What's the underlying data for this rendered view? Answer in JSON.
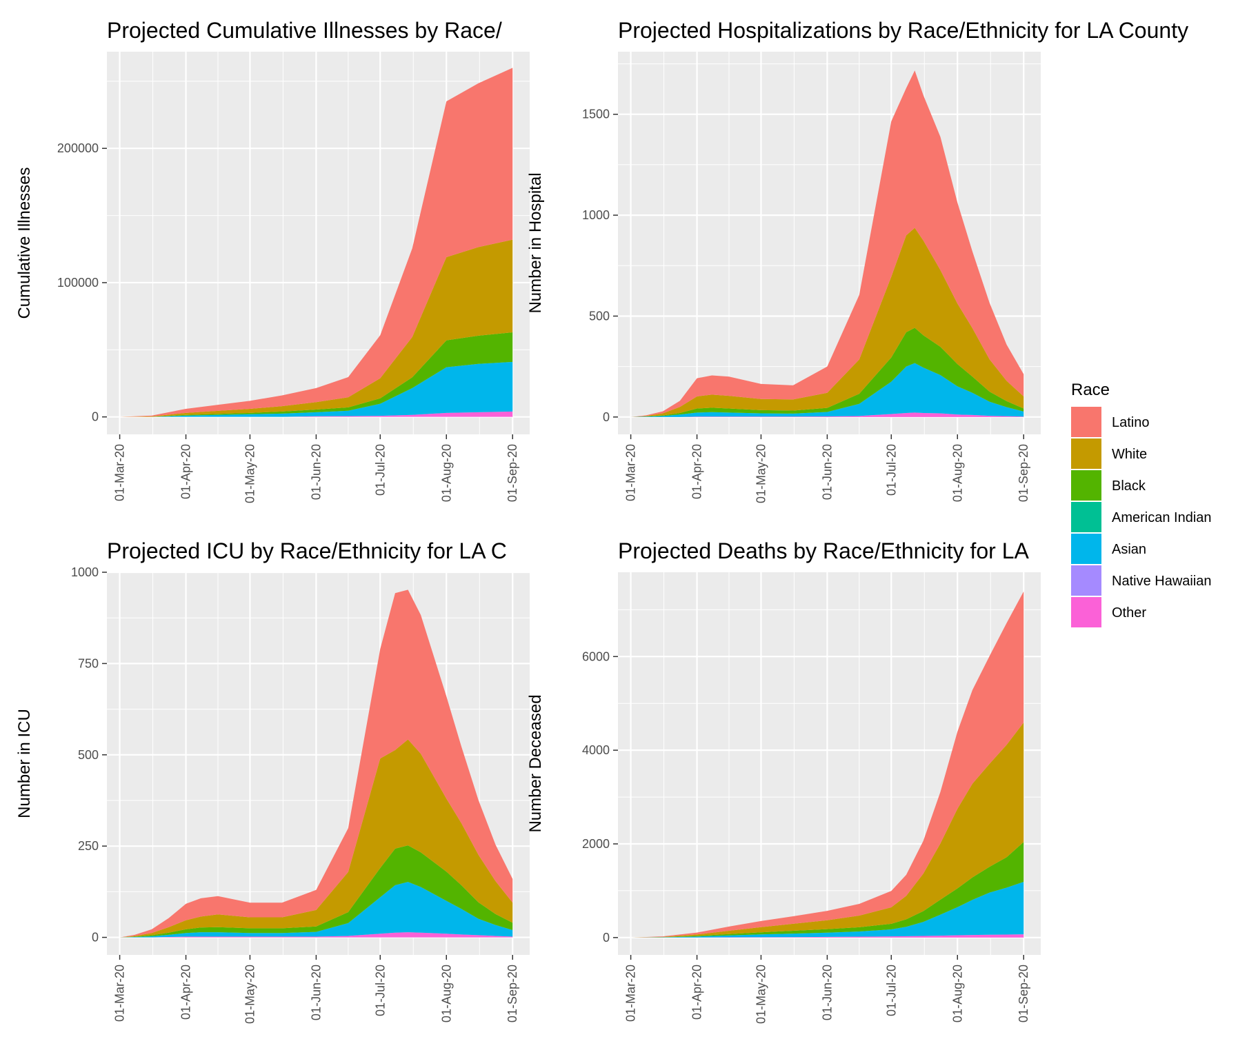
{
  "legend": {
    "title": "Race",
    "placement": "right",
    "items": [
      {
        "label": "Latino",
        "color": "#F8766D"
      },
      {
        "label": "White",
        "color": "#C49A00"
      },
      {
        "label": "Black",
        "color": "#53B400"
      },
      {
        "label": "American Indian",
        "color": "#00C094"
      },
      {
        "label": "Asian",
        "color": "#00B6EB"
      },
      {
        "label": "Native Hawaiian",
        "color": "#A58AFF"
      },
      {
        "label": "Other",
        "color": "#FB61D7"
      }
    ]
  },
  "chart_data": [
    {
      "type": "area",
      "stacked": true,
      "title": "Projected Cumulative Illnesses by Race/",
      "xlabel": "",
      "ylabel": "Cumulative Illnesses",
      "ylim": [
        -13000,
        272000
      ],
      "yticks": [
        0,
        100000,
        200000
      ],
      "ytick_labels": [
        "0",
        "100000",
        "200000"
      ],
      "xticks": [
        "2020-03-01",
        "2020-04-01",
        "2020-05-01",
        "2020-06-01",
        "2020-07-01",
        "2020-08-01",
        "2020-09-01"
      ],
      "xtick_labels": [
        "01-Mar-20",
        "01-Apr-20",
        "01-May-20",
        "01-Jun-20",
        "01-Jul-20",
        "01-Aug-20",
        "01-Sep-20"
      ],
      "grid": true,
      "x": [
        "2020-03-01",
        "2020-03-16",
        "2020-04-01",
        "2020-04-16",
        "2020-05-01",
        "2020-05-16",
        "2020-06-01",
        "2020-06-16",
        "2020-07-01",
        "2020-07-16",
        "2020-08-01",
        "2020-08-16",
        "2020-09-01"
      ],
      "series": [
        {
          "name": "Other",
          "values": [
            0,
            0,
            0,
            0,
            0,
            0,
            500,
            600,
            800,
            1500,
            3000,
            3500,
            4000
          ]
        },
        {
          "name": "Native Hawaiian",
          "values": [
            0,
            0,
            0,
            0,
            0,
            0,
            0,
            0,
            0,
            0,
            0,
            0,
            0
          ]
        },
        {
          "name": "Asian",
          "values": [
            0,
            0,
            1000,
            1500,
            2000,
            2500,
            3000,
            4000,
            9000,
            20000,
            34000,
            36000,
            37000
          ]
        },
        {
          "name": "American Indian",
          "values": [
            0,
            0,
            0,
            0,
            0,
            0,
            0,
            0,
            0,
            0,
            0,
            0,
            0
          ]
        },
        {
          "name": "Black",
          "values": [
            0,
            0,
            500,
            800,
            1000,
            1500,
            2000,
            2500,
            4000,
            8000,
            20000,
            21000,
            22000
          ]
        },
        {
          "name": "White",
          "values": [
            0,
            400,
            1500,
            2200,
            3000,
            4000,
            5500,
            7500,
            15000,
            30000,
            62000,
            66000,
            69000
          ]
        },
        {
          "name": "Latino",
          "values": [
            0,
            600,
            3000,
            4500,
            6000,
            8000,
            10500,
            15000,
            32000,
            66000,
            116000,
            122000,
            128000
          ]
        }
      ]
    },
    {
      "type": "area",
      "stacked": true,
      "title": "Projected Hospitalizations by Race/Ethnicity for LA County",
      "xlabel": "",
      "ylabel": "Number in Hospital",
      "ylim": [
        -86,
        1810
      ],
      "yticks": [
        0,
        500,
        1000,
        1500
      ],
      "ytick_labels": [
        "0",
        "500",
        "1000",
        "1500"
      ],
      "xticks": [
        "2020-03-01",
        "2020-04-01",
        "2020-05-01",
        "2020-06-01",
        "2020-07-01",
        "2020-08-01",
        "2020-09-01"
      ],
      "xtick_labels": [
        "01-Mar-20",
        "01-Apr-20",
        "01-May-20",
        "01-Jun-20",
        "01-Jul-20",
        "01-Aug-20",
        "01-Sep-20"
      ],
      "grid": true,
      "x": [
        "2020-03-01",
        "2020-03-08",
        "2020-03-16",
        "2020-03-24",
        "2020-04-01",
        "2020-04-08",
        "2020-04-16",
        "2020-05-01",
        "2020-05-16",
        "2020-06-01",
        "2020-06-16",
        "2020-07-01",
        "2020-07-08",
        "2020-07-12",
        "2020-07-16",
        "2020-07-24",
        "2020-08-01",
        "2020-08-08",
        "2020-08-16",
        "2020-08-24",
        "2020-09-01"
      ],
      "series": [
        {
          "name": "Other",
          "values": [
            0,
            0,
            0,
            0,
            2,
            2,
            2,
            2,
            2,
            3,
            5,
            15,
            20,
            22,
            20,
            18,
            12,
            10,
            6,
            4,
            2
          ]
        },
        {
          "name": "Native Hawaiian",
          "values": [
            0,
            0,
            0,
            0,
            0,
            0,
            0,
            0,
            0,
            0,
            0,
            0,
            0,
            0,
            0,
            0,
            0,
            0,
            0,
            0,
            0
          ]
        },
        {
          "name": "Asian",
          "values": [
            0,
            2,
            5,
            12,
            20,
            22,
            20,
            16,
            15,
            22,
            60,
            160,
            230,
            245,
            225,
            190,
            140,
            110,
            70,
            45,
            25
          ]
        },
        {
          "name": "American Indian",
          "values": [
            0,
            0,
            0,
            0,
            0,
            0,
            0,
            0,
            0,
            0,
            0,
            0,
            0,
            0,
            0,
            0,
            0,
            0,
            0,
            0,
            0
          ]
        },
        {
          "name": "Black",
          "values": [
            0,
            1,
            3,
            8,
            20,
            22,
            20,
            16,
            15,
            20,
            50,
            120,
            170,
            175,
            160,
            140,
            110,
            80,
            50,
            30,
            15
          ]
        },
        {
          "name": "White",
          "values": [
            0,
            2,
            10,
            30,
            60,
            65,
            63,
            55,
            55,
            75,
            170,
            400,
            480,
            495,
            470,
            380,
            300,
            240,
            160,
            100,
            60
          ]
        },
        {
          "name": "Latino",
          "values": [
            0,
            3,
            10,
            30,
            90,
            95,
            95,
            75,
            70,
            130,
            320,
            770,
            730,
            780,
            720,
            660,
            500,
            380,
            280,
            180,
            110
          ]
        }
      ]
    },
    {
      "type": "area",
      "stacked": true,
      "title": "Projected ICU by Race/Ethnicity for LA C",
      "xlabel": "",
      "ylabel": "Number in ICU",
      "ylim": [
        -48,
        1000
      ],
      "yticks": [
        0,
        250,
        500,
        750,
        1000
      ],
      "ytick_labels": [
        "0",
        "250",
        "500",
        "750",
        "1000"
      ],
      "xticks": [
        "2020-03-01",
        "2020-04-01",
        "2020-05-01",
        "2020-06-01",
        "2020-07-01",
        "2020-08-01",
        "2020-09-01"
      ],
      "xtick_labels": [
        "01-Mar-20",
        "01-Apr-20",
        "01-May-20",
        "01-Jun-20",
        "01-Jul-20",
        "01-Aug-20",
        "01-Sep-20"
      ],
      "grid": true,
      "x": [
        "2020-03-01",
        "2020-03-08",
        "2020-03-16",
        "2020-03-24",
        "2020-04-01",
        "2020-04-08",
        "2020-04-16",
        "2020-05-01",
        "2020-05-16",
        "2020-06-01",
        "2020-06-16",
        "2020-07-01",
        "2020-07-08",
        "2020-07-14",
        "2020-07-20",
        "2020-08-01",
        "2020-08-08",
        "2020-08-16",
        "2020-08-24",
        "2020-09-01"
      ],
      "series": [
        {
          "name": "Other",
          "values": [
            0,
            0,
            0,
            1,
            2,
            2,
            2,
            2,
            2,
            2,
            4,
            10,
            13,
            14,
            13,
            10,
            8,
            6,
            4,
            2
          ]
        },
        {
          "name": "Native Hawaiian",
          "values": [
            0,
            0,
            0,
            0,
            0,
            0,
            0,
            0,
            0,
            0,
            0,
            0,
            0,
            0,
            0,
            0,
            0,
            0,
            0,
            0
          ]
        },
        {
          "name": "Asian",
          "values": [
            0,
            1,
            3,
            6,
            10,
            12,
            12,
            10,
            10,
            13,
            35,
            100,
            130,
            138,
            125,
            90,
            70,
            45,
            30,
            18
          ]
        },
        {
          "name": "American Indian",
          "values": [
            0,
            0,
            0,
            0,
            0,
            0,
            0,
            0,
            0,
            0,
            0,
            0,
            0,
            0,
            0,
            0,
            0,
            0,
            0,
            0
          ]
        },
        {
          "name": "Black",
          "values": [
            0,
            1,
            3,
            6,
            10,
            13,
            14,
            13,
            13,
            15,
            30,
            80,
            100,
            100,
            95,
            80,
            65,
            45,
            30,
            20
          ]
        },
        {
          "name": "White",
          "values": [
            0,
            2,
            6,
            15,
            25,
            30,
            35,
            30,
            30,
            45,
            110,
            300,
            270,
            290,
            270,
            200,
            170,
            130,
            90,
            55
          ]
        },
        {
          "name": "Latino",
          "values": [
            0,
            3,
            10,
            25,
            45,
            50,
            50,
            40,
            40,
            55,
            120,
            300,
            430,
            410,
            380,
            280,
            210,
            150,
            100,
            65
          ]
        }
      ]
    },
    {
      "type": "area",
      "stacked": true,
      "title": "Projected Deaths by Race/Ethnicity for LA",
      "xlabel": "",
      "ylabel": "Number Deceased",
      "ylim": [
        -370,
        7800
      ],
      "yticks": [
        0,
        2000,
        4000,
        6000
      ],
      "ytick_labels": [
        "0",
        "2000",
        "4000",
        "6000"
      ],
      "xticks": [
        "2020-03-01",
        "2020-04-01",
        "2020-05-01",
        "2020-06-01",
        "2020-07-01",
        "2020-08-01",
        "2020-09-01"
      ],
      "xtick_labels": [
        "01-Mar-20",
        "01-Apr-20",
        "01-May-20",
        "01-Jun-20",
        "01-Jul-20",
        "01-Aug-20",
        "01-Sep-20"
      ],
      "grid": true,
      "x": [
        "2020-03-01",
        "2020-03-16",
        "2020-04-01",
        "2020-04-16",
        "2020-05-01",
        "2020-05-16",
        "2020-06-01",
        "2020-06-16",
        "2020-07-01",
        "2020-07-08",
        "2020-07-16",
        "2020-07-24",
        "2020-08-01",
        "2020-08-08",
        "2020-08-16",
        "2020-08-24",
        "2020-09-01"
      ],
      "series": [
        {
          "name": "Other",
          "values": [
            0,
            0,
            2,
            5,
            8,
            10,
            15,
            20,
            25,
            30,
            35,
            40,
            50,
            55,
            60,
            65,
            70
          ]
        },
        {
          "name": "Native Hawaiian",
          "values": [
            0,
            0,
            0,
            0,
            0,
            0,
            0,
            0,
            0,
            0,
            0,
            0,
            0,
            0,
            0,
            0,
            0
          ]
        },
        {
          "name": "Asian",
          "values": [
            0,
            5,
            20,
            40,
            60,
            75,
            90,
            110,
            150,
            200,
            300,
            450,
            600,
            750,
            900,
            1000,
            1120
          ]
        },
        {
          "name": "American Indian",
          "values": [
            0,
            0,
            0,
            0,
            0,
            0,
            0,
            0,
            0,
            0,
            0,
            0,
            0,
            0,
            0,
            0,
            0
          ]
        },
        {
          "name": "Black",
          "values": [
            0,
            3,
            15,
            30,
            45,
            60,
            75,
            90,
            120,
            160,
            230,
            320,
            400,
            480,
            550,
            650,
            850
          ]
        },
        {
          "name": "White",
          "values": [
            0,
            7,
            30,
            70,
            110,
            150,
            190,
            250,
            350,
            500,
            800,
            1200,
            1700,
            2000,
            2200,
            2400,
            2550
          ]
        },
        {
          "name": "Latino",
          "values": [
            0,
            10,
            40,
            90,
            130,
            160,
            200,
            250,
            350,
            450,
            700,
            1100,
            1650,
            2000,
            2300,
            2600,
            2800
          ]
        }
      ]
    }
  ]
}
